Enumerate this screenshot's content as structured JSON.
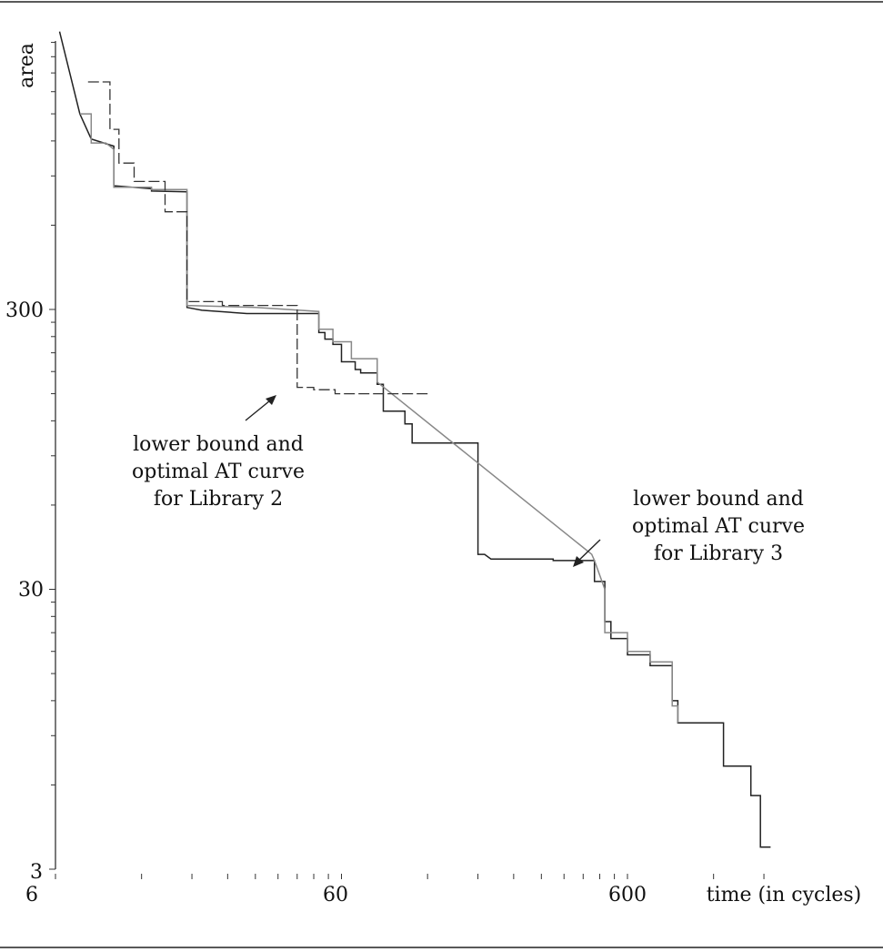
{
  "chart_data": {
    "type": "line",
    "scale": {
      "x": "log",
      "y": "log"
    },
    "xlabel": "time (in cycles)",
    "ylabel": "area",
    "xlim": [
      6,
      1900
    ],
    "ylim": [
      3,
      3500
    ],
    "x_tick_labels": [
      "6",
      "60",
      "600"
    ],
    "y_tick_labels": [
      "3",
      "30",
      "300"
    ],
    "grid": false,
    "series": [
      {
        "style": "solid",
        "color": "#222222",
        "points": [
          [
            6.2,
            2950
          ],
          [
            7.3,
            1500
          ],
          [
            8.0,
            1220
          ],
          [
            9.6,
            1150
          ],
          [
            9.6,
            830
          ],
          [
            13.0,
            810
          ],
          [
            13.0,
            795
          ],
          [
            17.3,
            790
          ],
          [
            17.3,
            305
          ],
          [
            19.5,
            298
          ],
          [
            28.0,
            290
          ],
          [
            35.0,
            290
          ],
          [
            50.0,
            290
          ],
          [
            50.0,
            248
          ],
          [
            52.5,
            248
          ],
          [
            52.5,
            235
          ],
          [
            56.0,
            235
          ],
          [
            56.0,
            225
          ],
          [
            60.0,
            225
          ],
          [
            60.0,
            195
          ],
          [
            67.0,
            195
          ],
          [
            67.0,
            183
          ],
          [
            70.0,
            183
          ],
          [
            70.0,
            178
          ],
          [
            80.0,
            178
          ],
          [
            80.0,
            162
          ],
          [
            84.0,
            162
          ],
          [
            84.0,
            130
          ],
          [
            100.0,
            130
          ],
          [
            100.0,
            117
          ],
          [
            106.0,
            117
          ],
          [
            106.0,
            100
          ],
          [
            180.0,
            100
          ],
          [
            180.0,
            40
          ],
          [
            190.0,
            40
          ],
          [
            200.0,
            38.5
          ],
          [
            330.0,
            38.5
          ],
          [
            330.0,
            38
          ],
          [
            460.0,
            38
          ],
          [
            460.0,
            32
          ],
          [
            500.0,
            32
          ],
          [
            500.0,
            23
          ],
          [
            525.0,
            23
          ],
          [
            525.0,
            20
          ],
          [
            600.0,
            20
          ],
          [
            600.0,
            17.5
          ],
          [
            720.0,
            17.5
          ],
          [
            720.0,
            16
          ],
          [
            860.0,
            16
          ],
          [
            860.0,
            12
          ],
          [
            900.0,
            12
          ],
          [
            900.0,
            10
          ],
          [
            1300.0,
            10
          ],
          [
            1300.0,
            7
          ],
          [
            1620.0,
            7
          ],
          [
            1620.0,
            5.5
          ],
          [
            1750.0,
            5.5
          ],
          [
            1750.0,
            3.6
          ],
          [
            1830.0,
            3.6
          ],
          [
            1900.0,
            3.6
          ]
        ]
      },
      {
        "style": "solid",
        "color": "#888888",
        "points": [
          [
            7.3,
            1500
          ],
          [
            8.0,
            1500
          ],
          [
            8.0,
            1180
          ],
          [
            9.0,
            1180
          ],
          [
            9.6,
            1120
          ],
          [
            9.6,
            820
          ],
          [
            13.0,
            820
          ],
          [
            13.0,
            805
          ],
          [
            17.3,
            805
          ],
          [
            17.3,
            310
          ],
          [
            30.0,
            305
          ],
          [
            50.0,
            295
          ],
          [
            50.0,
            255
          ],
          [
            56.0,
            255
          ],
          [
            56.0,
            230
          ],
          [
            65.0,
            230
          ],
          [
            65.0,
            200
          ],
          [
            80.0,
            200
          ],
          [
            80.0,
            165
          ],
          [
            450.0,
            40
          ],
          [
            460.0,
            38
          ],
          [
            500.0,
            30
          ],
          [
            500.0,
            21
          ],
          [
            600.0,
            21
          ],
          [
            600.0,
            18
          ],
          [
            720.0,
            18
          ],
          [
            720.0,
            16.5
          ],
          [
            860.0,
            16.5
          ],
          [
            860.0,
            11.5
          ],
          [
            900.0,
            11.5
          ],
          [
            900.0,
            10
          ]
        ]
      },
      {
        "style": "dashed",
        "color": "#333333",
        "points": [
          [
            7.8,
            1950
          ],
          [
            9.3,
            1950
          ],
          [
            9.3,
            1320
          ],
          [
            10.0,
            1320
          ],
          [
            10.0,
            1000
          ],
          [
            11.3,
            1000
          ],
          [
            11.3,
            860
          ],
          [
            14.5,
            860
          ],
          [
            14.5,
            670
          ],
          [
            17.3,
            670
          ],
          [
            17.3,
            320
          ],
          [
            23.0,
            320
          ],
          [
            23.0,
            310
          ],
          [
            42.0,
            310
          ],
          [
            42.0,
            158
          ],
          [
            48.0,
            158
          ],
          [
            48.0,
            155
          ],
          [
            57.0,
            155
          ],
          [
            57.0,
            150
          ],
          [
            70.0,
            150
          ],
          [
            90.0,
            150
          ],
          [
            120.0,
            150
          ]
        ]
      }
    ],
    "annotations": [
      {
        "lines": [
          "lower bound and",
          "optimal AT curve",
          "for Library 2"
        ]
      },
      {
        "lines": [
          "lower bound and",
          "optimal AT curve",
          "for Library 3"
        ]
      }
    ]
  }
}
